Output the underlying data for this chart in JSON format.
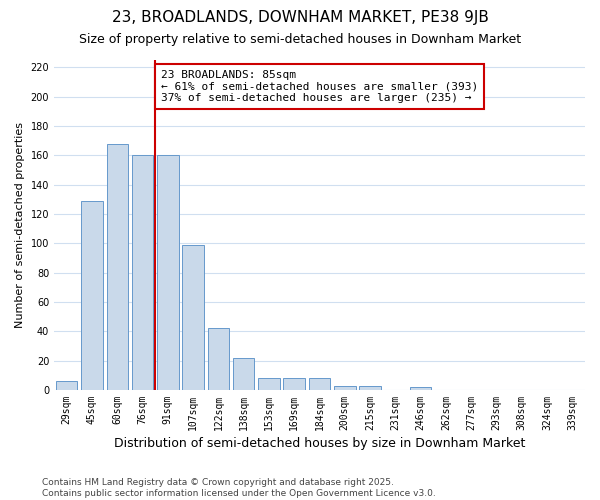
{
  "title": "23, BROADLANDS, DOWNHAM MARKET, PE38 9JB",
  "subtitle": "Size of property relative to semi-detached houses in Downham Market",
  "xlabel": "Distribution of semi-detached houses by size in Downham Market",
  "ylabel": "Number of semi-detached properties",
  "categories": [
    "29sqm",
    "45sqm",
    "60sqm",
    "76sqm",
    "91sqm",
    "107sqm",
    "122sqm",
    "138sqm",
    "153sqm",
    "169sqm",
    "184sqm",
    "200sqm",
    "215sqm",
    "231sqm",
    "246sqm",
    "262sqm",
    "277sqm",
    "293sqm",
    "308sqm",
    "324sqm",
    "339sqm"
  ],
  "values": [
    6,
    129,
    168,
    160,
    160,
    99,
    42,
    22,
    8,
    8,
    8,
    3,
    3,
    0,
    2,
    0,
    0,
    0,
    0,
    0,
    0
  ],
  "bar_color": "#c9d9ea",
  "bar_edge_color": "#6699cc",
  "background_color": "#ffffff",
  "grid_color": "#d0dff0",
  "vline_x_index": 4,
  "vline_color": "#cc0000",
  "annotation_title": "23 BROADLANDS: 85sqm",
  "annotation_line1": "← 61% of semi-detached houses are smaller (393)",
  "annotation_line2": "37% of semi-detached houses are larger (235) →",
  "annotation_box_color": "#cc0000",
  "annotation_fill": "#ffffff",
  "ylim": [
    0,
    225
  ],
  "yticks": [
    0,
    20,
    40,
    60,
    80,
    100,
    120,
    140,
    160,
    180,
    200,
    220
  ],
  "footnote1": "Contains HM Land Registry data © Crown copyright and database right 2025.",
  "footnote2": "Contains public sector information licensed under the Open Government Licence v3.0.",
  "title_fontsize": 11,
  "subtitle_fontsize": 9,
  "xlabel_fontsize": 9,
  "ylabel_fontsize": 8,
  "tick_fontsize": 7,
  "annotation_fontsize": 8,
  "footnote_fontsize": 6.5
}
